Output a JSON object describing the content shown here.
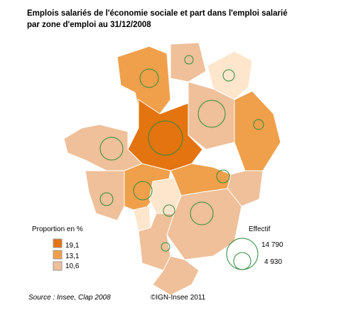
{
  "header": {
    "title_lines": [
      "Emplois salariés de l'économie sociale et part dans l'emploi salarié",
      "par zone d'emploi au 31/12/2008"
    ]
  },
  "legend_share": {
    "title": "Proportion en %",
    "classes": [
      "19,1",
      "13,1",
      "10,6"
    ]
  },
  "legend_size": {
    "title": "Effectif",
    "labels": [
      "14 790",
      "4 930"
    ]
  },
  "footer": {
    "source": "Source : Insee, Clap 2008",
    "copyright": "©IGN-Insee 2011"
  }
}
